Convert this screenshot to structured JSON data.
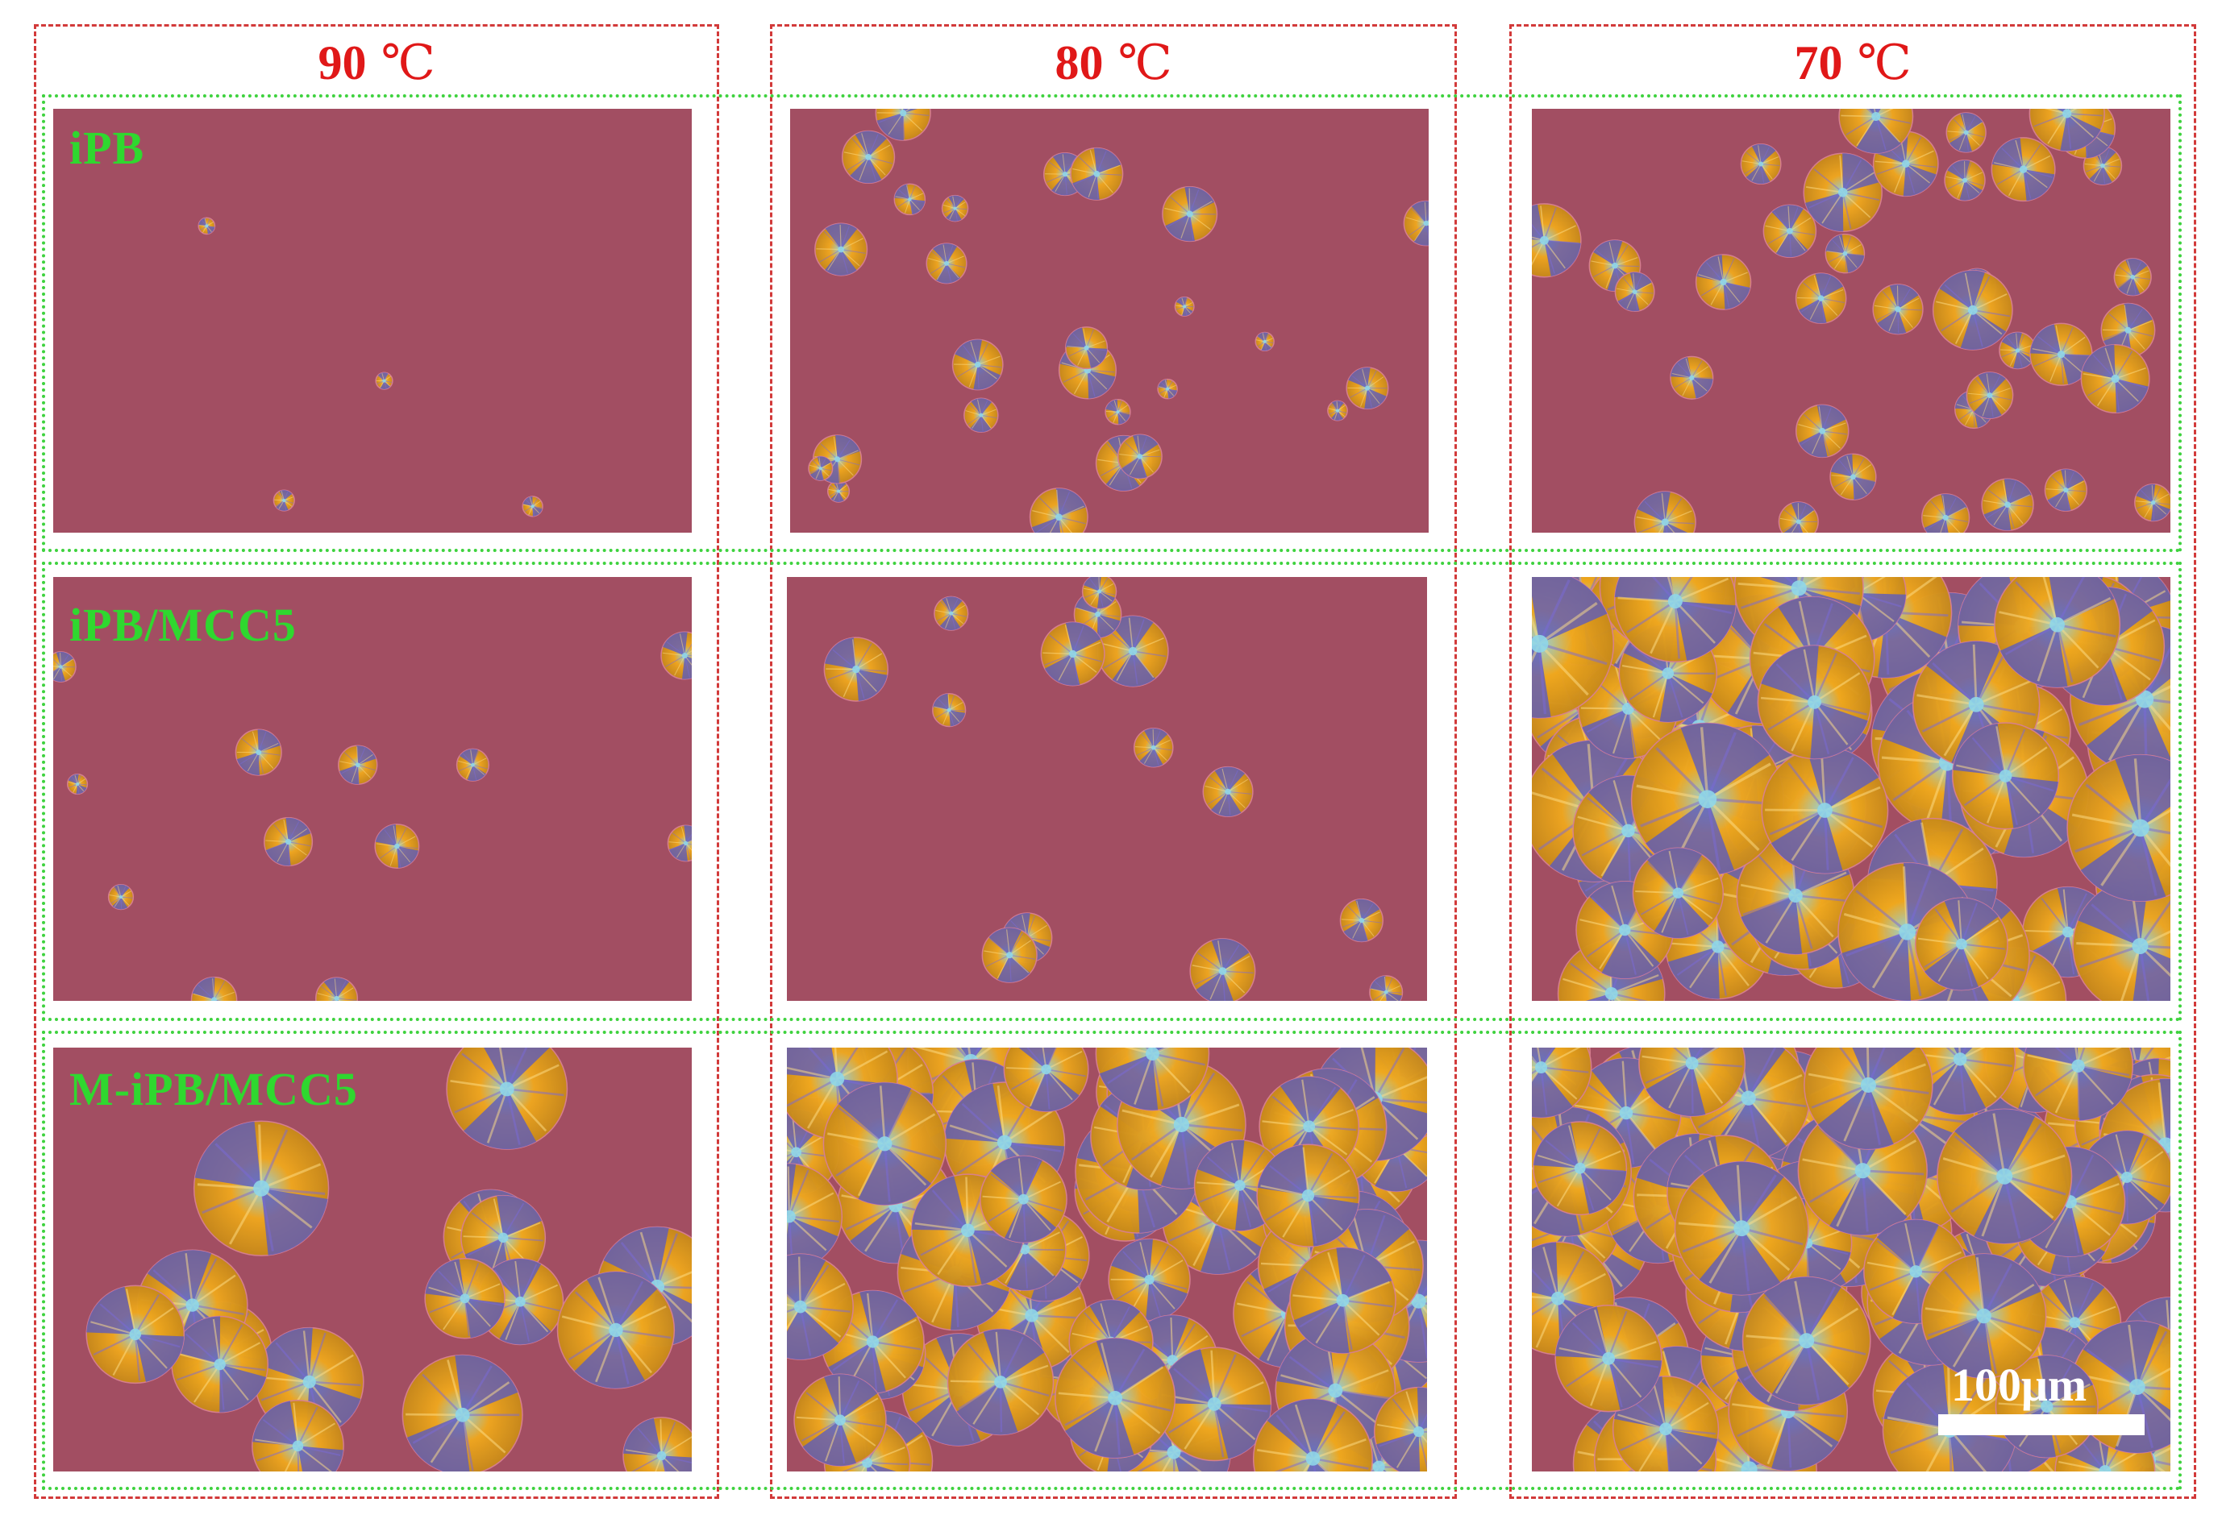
{
  "columns": [
    {
      "value": "90",
      "unit": "℃"
    },
    {
      "value": "80",
      "unit": "℃"
    },
    {
      "value": "70",
      "unit": "℃"
    }
  ],
  "rows": [
    {
      "label": "iPB"
    },
    {
      "label": "iPB/MCC5"
    },
    {
      "label": "M-iPB/MCC5"
    }
  ],
  "scale_bar": {
    "label": "100μm"
  },
  "colors": {
    "background_field": "#a24e62",
    "column_frame": "#d23a3a",
    "row_frame": "#3ed23e",
    "header_text": "#e01818",
    "label_text": "#2fd82f",
    "spherulite_orange": "#f0a81e",
    "spherulite_blue": "#5a5ac0",
    "spherulite_cyan": "#8fd6e8"
  }
}
